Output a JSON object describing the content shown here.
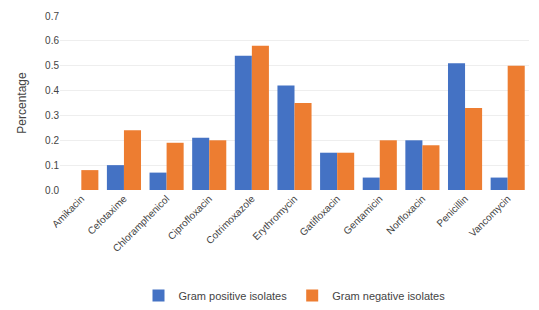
{
  "chart_data": {
    "type": "bar",
    "categories": [
      "Amikacin",
      "Cefotaxime",
      "Chloramphenicol",
      "Ciprofloxacin",
      "Cotrimoxazole",
      "Erythromycin",
      "Gatifloxacin",
      "Gentamicin",
      "Norfloxacin",
      "Penicillin",
      "Vancomycin"
    ],
    "series": [
      {
        "name": "Gram positive isolates",
        "color": "#4472C4",
        "values": [
          0.0,
          0.1,
          0.07,
          0.21,
          0.54,
          0.42,
          0.15,
          0.05,
          0.2,
          0.51,
          0.05
        ]
      },
      {
        "name": "Gram negative isolates",
        "color": "#ED7D31",
        "values": [
          0.08,
          0.24,
          0.19,
          0.2,
          0.58,
          0.35,
          0.15,
          0.2,
          0.18,
          0.33,
          0.5
        ]
      }
    ],
    "ylabel": "Percentage",
    "ylim": [
      0,
      0.7
    ],
    "yticks": [
      {
        "value": 0,
        "label": "0.0"
      },
      0.1,
      0.2,
      0.3,
      0.4,
      0.5,
      0.6,
      0.7
    ],
    "grid": true,
    "legend": "bottom"
  }
}
